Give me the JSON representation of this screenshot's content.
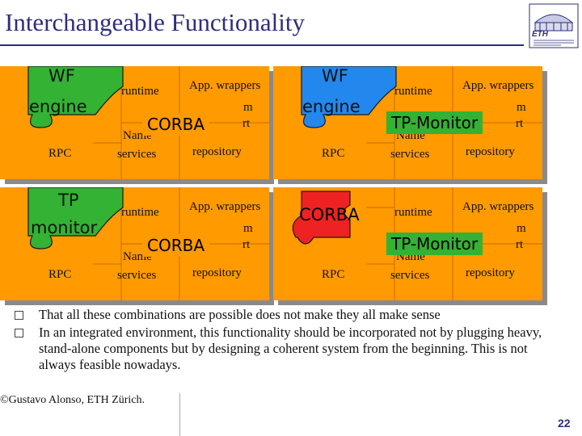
{
  "title": "Interchangeable Functionality",
  "logo": {
    "text": "ETH",
    "icon": "eth-building-logo"
  },
  "colors": {
    "orange": "#ff9a00",
    "green": "#33b233",
    "blue": "#2288ee",
    "red": "#ee2222",
    "title": "#2e2e7a"
  },
  "panels": [
    {
      "piece": {
        "shape": "wf",
        "color": "#33b233",
        "line1": "WF",
        "line2": "engine"
      },
      "overlay": {
        "text": "CORBA",
        "bg": "#ff9a00"
      },
      "labels": {
        "rpc": "RPC",
        "runtime": "runtime",
        "wrappers": "App. wrappers",
        "name1": "Name",
        "name2": "services",
        "repository": "repository",
        "hidden1": "m",
        "hidden2": "rt"
      }
    },
    {
      "piece": {
        "shape": "wf",
        "color": "#2288ee",
        "line1": "WF",
        "line2": "engine"
      },
      "overlay": {
        "text": "TP-Monitor",
        "bg": "#33b233"
      },
      "labels": {
        "rpc": "RPC",
        "runtime": "runtime",
        "wrappers": "App. wrappers",
        "name1": "Name",
        "name2": "services",
        "repository": "repository",
        "hidden1": "m",
        "hidden2": "rt"
      }
    },
    {
      "piece": {
        "shape": "tp",
        "color": "#33b233",
        "line1": "TP",
        "line2": "monitor"
      },
      "overlay": {
        "text": "CORBA",
        "bg": "#ff9a00"
      },
      "labels": {
        "rpc": "RPC",
        "runtime": "runtime",
        "wrappers": "App. wrappers",
        "name1": "Name",
        "name2": "services",
        "repository": "repository",
        "hidden1": "m",
        "hidden2": "rt"
      }
    },
    {
      "piece": {
        "shape": "corba",
        "color": "#ee2222",
        "line1": "CORBA",
        "line2": ""
      },
      "overlay": {
        "text": "TP-Monitor",
        "bg": "#33b233"
      },
      "labels": {
        "rpc": "RPC",
        "runtime": "runtime",
        "wrappers": "App. wrappers",
        "name1": "Name",
        "name2": "services",
        "repository": "repository",
        "hidden1": "m",
        "hidden2": "rt"
      }
    }
  ],
  "bullets": [
    "That all these combinations are possible does not make they all make sense",
    "In an integrated environment, this functionality should be incorporated not by plugging heavy, stand-alone components but by designing a coherent system from the beginning. This is not always feasible nowadays."
  ],
  "footer": {
    "author": "©Gustavo Alonso, ETH Zürich.",
    "page": "22"
  }
}
